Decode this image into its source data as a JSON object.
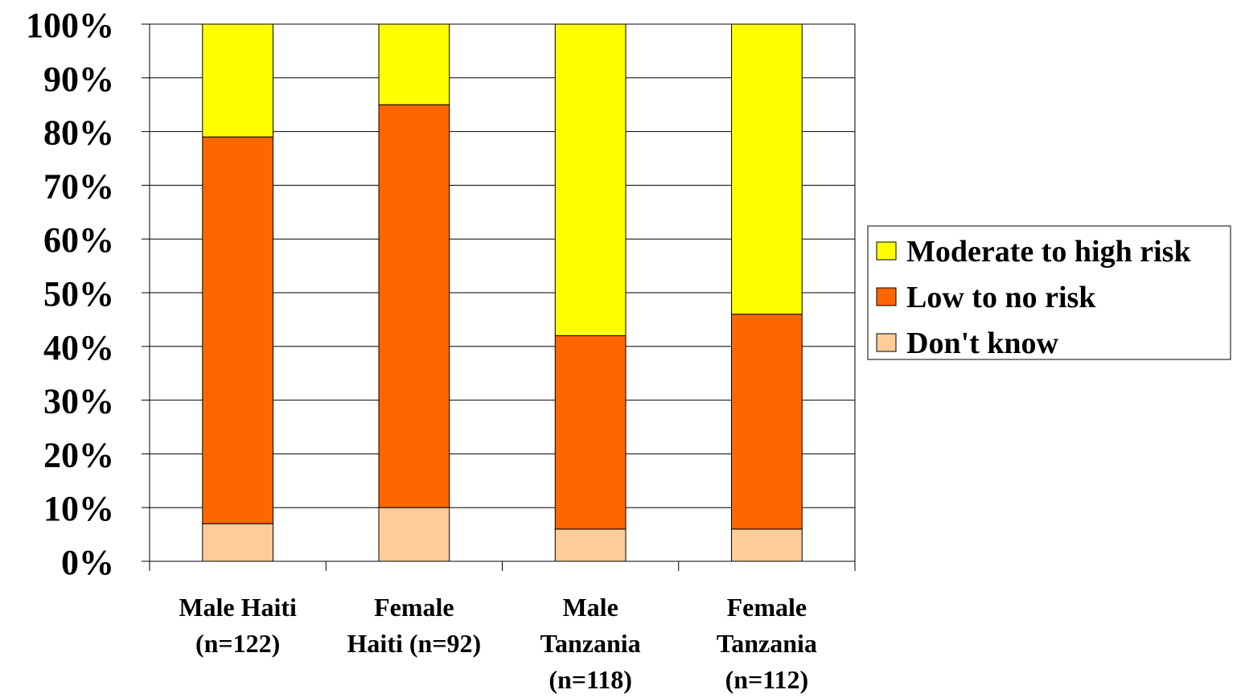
{
  "chart_data": {
    "type": "bar",
    "stacked": true,
    "categories": [
      [
        "Male Haiti",
        "(n=122)"
      ],
      [
        "Female",
        "Haiti (n=92)"
      ],
      [
        "Male",
        "Tanzania",
        "(n=118)"
      ],
      [
        "Female",
        "Tanzania",
        "(n=112)"
      ]
    ],
    "series": [
      {
        "name": "Don't know",
        "color": "#FFCC99",
        "values": [
          7,
          10,
          6,
          6
        ]
      },
      {
        "name": "Low to no risk",
        "color": "#FF6600",
        "values": [
          72,
          75,
          36,
          40
        ]
      },
      {
        "name": "Moderate to high risk",
        "color": "#FFFF00",
        "values": [
          21,
          15,
          58,
          54
        ]
      }
    ],
    "legend_order": [
      "Moderate to high risk",
      "Low to no risk",
      "Don't know"
    ],
    "legend_position": "right",
    "ylim": [
      0,
      100
    ],
    "yticks": [
      0,
      10,
      20,
      30,
      40,
      50,
      60,
      70,
      80,
      90,
      100
    ],
    "ytick_labels": [
      "0%",
      "10%",
      "20%",
      "30%",
      "40%",
      "50%",
      "60%",
      "70%",
      "80%",
      "90%",
      "100%"
    ],
    "grid": true,
    "title": "",
    "xlabel": "",
    "ylabel": ""
  }
}
